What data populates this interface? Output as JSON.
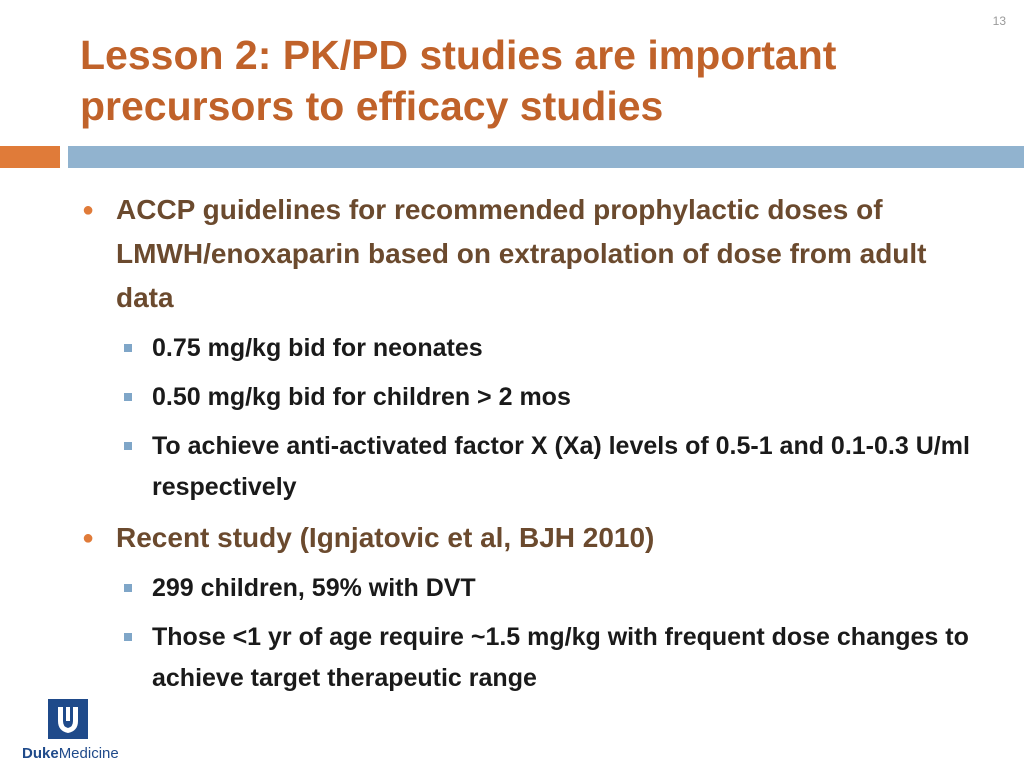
{
  "slide_number": "13",
  "title": "Lesson 2:  PK/PD studies are important precursors to efficacy studies",
  "bullets": [
    {
      "text": "ACCP guidelines for recommended prophylactic doses of LMWH/enoxaparin based on extrapolation of dose from adult data",
      "sub": [
        "0.75 mg/kg bid for neonates",
        "0.50 mg/kg bid for children > 2 mos",
        "To achieve anti-activated factor X (Xa) levels of 0.5-1 and 0.1-0.3 U/ml respectively"
      ]
    },
    {
      "text": "Recent study (Ignjatovic et al, BJH 2010)",
      "sub": [
        "299 children, 59% with DVT",
        "Those <1 yr of age require ~1.5 mg/kg with frequent dose changes to achieve target therapeutic range"
      ]
    }
  ],
  "logo": {
    "brand_bold": "Duke",
    "brand_regular": "Medicine"
  },
  "colors": {
    "title": "#c0622a",
    "accent_orange": "#e07b39",
    "accent_blue": "#91b3cf",
    "level1_text": "#6b4a2e",
    "brand_blue": "#1f4a8a"
  }
}
